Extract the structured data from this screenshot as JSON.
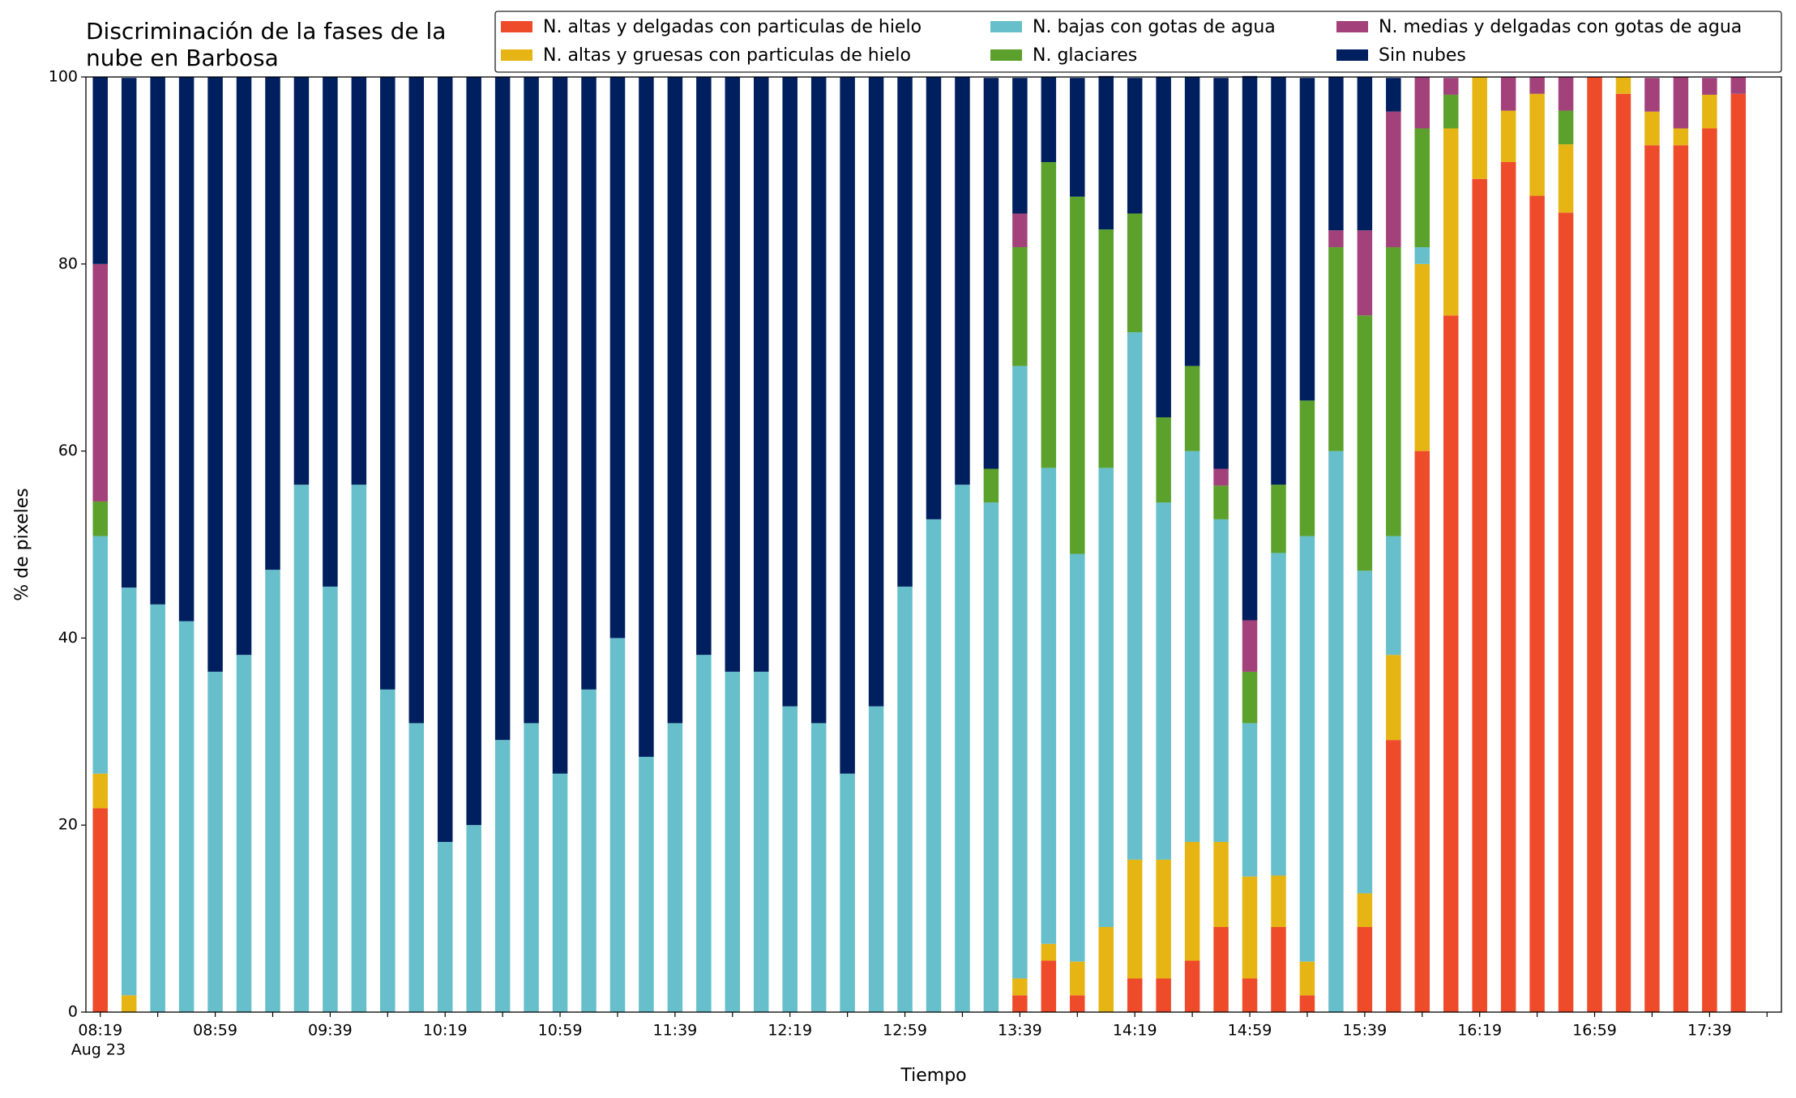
{
  "chart_data": {
    "type": "stacked_bar",
    "title": [
      "Discriminación de la fases de la",
      "nube en Barbosa"
    ],
    "xlabel": "Tiempo",
    "ylabel": "% de pixeles",
    "x_date_label": "Aug 23",
    "categories": [
      "08:19",
      null,
      null,
      null,
      "08:59",
      null,
      null,
      null,
      "09:39",
      null,
      null,
      null,
      "10:19",
      null,
      null,
      null,
      "10:59",
      null,
      null,
      null,
      "11:39",
      null,
      null,
      null,
      "12:19",
      null,
      null,
      null,
      "12:59",
      null,
      null,
      null,
      "13:39",
      null,
      null,
      null,
      "14:19",
      null,
      null,
      null,
      "14:59",
      null,
      null,
      null,
      "15:39",
      null,
      null,
      null,
      "16:19",
      null,
      null,
      null,
      "16:59",
      null,
      null,
      null,
      "17:39",
      null
    ],
    "series": [
      {
        "name": "N. altas y delgadas con particulas de hielo",
        "color": "#ee4b2b",
        "values": [
          21.8,
          0,
          0,
          0,
          0,
          0,
          0,
          0,
          0,
          0,
          0,
          0,
          0,
          0,
          0,
          0,
          0,
          0,
          0,
          0,
          0,
          0,
          0,
          0,
          0,
          0,
          0,
          0,
          0,
          0,
          0,
          0,
          1.8,
          5.5,
          1.8,
          0,
          3.6,
          3.6,
          5.5,
          9.1,
          3.6,
          9.1,
          1.8,
          0,
          9.1,
          29.1,
          60,
          74.5,
          89.1,
          90.9,
          87.3,
          85.5,
          100,
          98.2,
          92.7,
          92.7,
          94.5,
          98.2
        ]
      },
      {
        "name": "N. altas y gruesas con particulas de hielo",
        "color": "#e6b514",
        "values": [
          3.7,
          1.8,
          0,
          0,
          0,
          0,
          0,
          0,
          0,
          0,
          0,
          0,
          0,
          0,
          0,
          0,
          0,
          0,
          0,
          0,
          0,
          0,
          0,
          0,
          0,
          0,
          0,
          0,
          0,
          0,
          0,
          0,
          1.8,
          1.8,
          3.6,
          9.1,
          12.7,
          12.7,
          12.7,
          9.1,
          10.9,
          5.5,
          3.6,
          0,
          3.6,
          9.1,
          20,
          20,
          10.9,
          5.5,
          10.9,
          7.3,
          0,
          1.8,
          3.6,
          1.8,
          3.6,
          0
        ]
      },
      {
        "name": "N. bajas con gotas de agua",
        "color": "#66bfca",
        "values": [
          25.4,
          43.6,
          43.6,
          41.8,
          36.4,
          38.2,
          47.3,
          56.4,
          45.5,
          56.4,
          34.5,
          30.9,
          18.2,
          20,
          29.1,
          30.9,
          25.5,
          34.5,
          40,
          27.3,
          30.9,
          38.2,
          36.4,
          36.4,
          32.7,
          30.9,
          25.5,
          32.7,
          45.5,
          52.7,
          56.4,
          54.5,
          65.5,
          50.9,
          43.6,
          49.1,
          56.4,
          38.2,
          41.8,
          34.5,
          16.4,
          34.5,
          45.5,
          60,
          34.5,
          12.7,
          1.8,
          0,
          0,
          0,
          0,
          0,
          0,
          0,
          0,
          0,
          0,
          0
        ]
      },
      {
        "name": "N. glaciares",
        "color": "#5ba12c",
        "values": [
          3.7,
          0,
          0,
          0,
          0,
          0,
          0,
          0,
          0,
          0,
          0,
          0,
          0,
          0,
          0,
          0,
          0,
          0,
          0,
          0,
          0,
          0,
          0,
          0,
          0,
          0,
          0,
          0,
          0,
          0,
          0,
          3.6,
          12.7,
          32.7,
          38.2,
          25.5,
          12.7,
          9.1,
          9.1,
          3.6,
          5.5,
          7.3,
          14.5,
          21.8,
          27.3,
          30.9,
          12.7,
          3.6,
          0,
          0,
          0,
          3.6,
          0,
          0,
          0,
          0,
          0,
          0
        ]
      },
      {
        "name": "N. medias y delgadas con gotas de agua",
        "color": "#a3427a",
        "values": [
          25.4,
          0,
          0,
          0,
          0,
          0,
          0,
          0,
          0,
          0,
          0,
          0,
          0,
          0,
          0,
          0,
          0,
          0,
          0,
          0,
          0,
          0,
          0,
          0,
          0,
          0,
          0,
          0,
          0,
          0,
          0,
          0,
          3.6,
          0,
          0,
          0,
          0,
          0,
          0,
          1.8,
          5.5,
          0,
          0,
          1.8,
          9.1,
          14.5,
          5.5,
          1.8,
          0,
          3.6,
          1.8,
          3.6,
          0,
          0,
          3.6,
          5.5,
          1.8,
          1.8
        ]
      },
      {
        "name": "Sin nubes",
        "color": "#001f5f",
        "values": [
          20,
          54.5,
          56.4,
          58.2,
          63.6,
          61.8,
          52.7,
          43.6,
          54.5,
          43.6,
          65.5,
          69.1,
          81.8,
          80,
          70.9,
          69.1,
          74.5,
          65.5,
          60,
          72.7,
          69.1,
          61.8,
          63.6,
          63.6,
          67.3,
          69.1,
          74.5,
          67.3,
          54.5,
          47.3,
          43.6,
          41.8,
          14.5,
          9.1,
          12.7,
          16.4,
          14.5,
          36.4,
          30.9,
          41.8,
          58.2,
          43.6,
          34.5,
          16.4,
          16.4,
          3.6,
          0,
          0,
          0,
          0,
          0,
          0,
          0,
          0,
          0,
          0,
          0,
          0
        ]
      }
    ],
    "ylim": [
      0,
      100
    ],
    "yticks": [
      0,
      20,
      40,
      60,
      80,
      100
    ],
    "grid": false,
    "legend": "top right"
  }
}
